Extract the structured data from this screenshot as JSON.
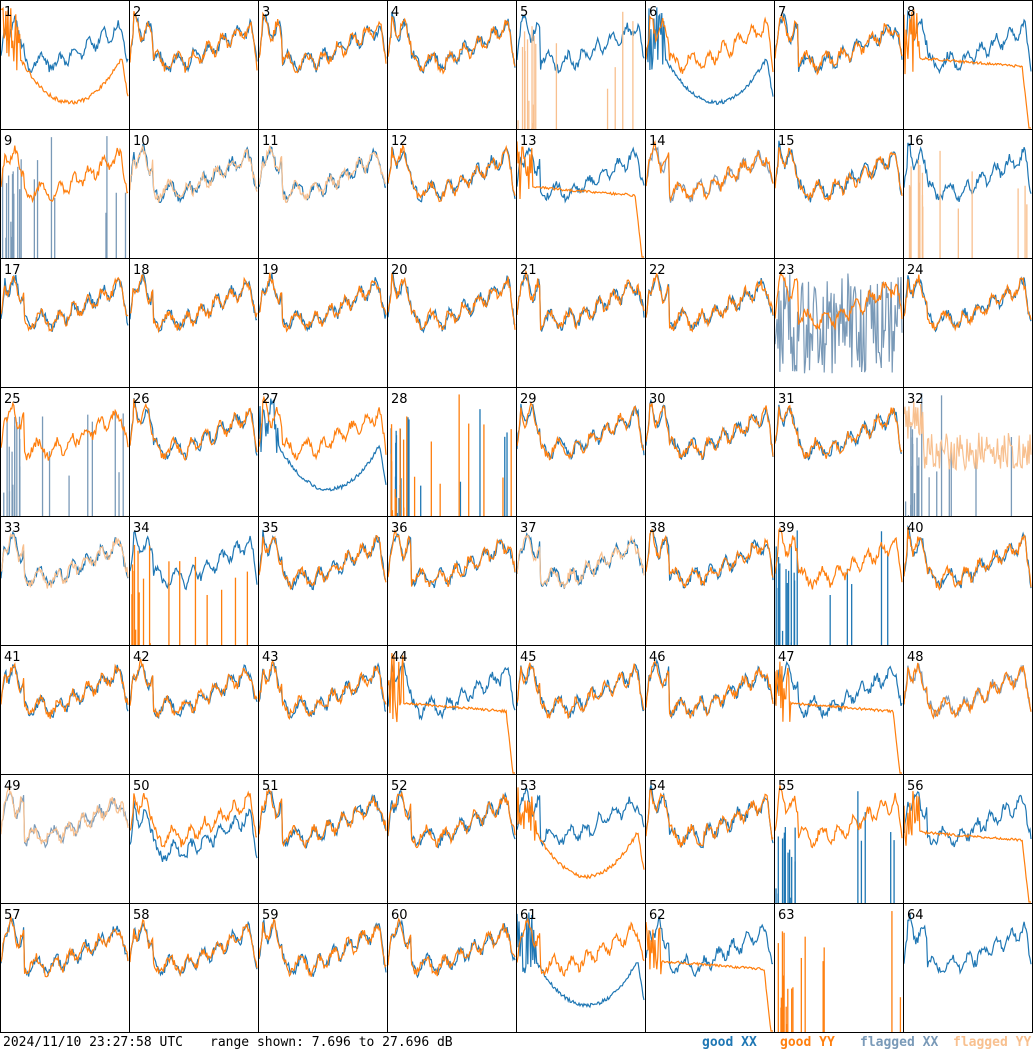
{
  "footer": {
    "timestamp": "2024/11/10 23:27:58 UTC",
    "range_text": "range shown: 7.696 to 27.696 dB"
  },
  "legend": [
    {
      "label": "good XX",
      "color": "#1f77b4"
    },
    {
      "label": "good YY",
      "color": "#ff7f0e"
    },
    {
      "label": "flagged XX",
      "color": "#7a9ab8"
    },
    {
      "label": "flagged YY",
      "color": "#f8c08f"
    }
  ],
  "chart_data": {
    "type": "line",
    "grid": [
      8,
      8
    ],
    "ylim": [
      7.696,
      27.696
    ],
    "y_unit": "dB",
    "panel_labels": [
      "1",
      "2",
      "3",
      "4",
      "5",
      "6",
      "7",
      "8",
      "9",
      "10",
      "11",
      "12",
      "13",
      "14",
      "15",
      "16",
      "17",
      "18",
      "19",
      "20",
      "21",
      "22",
      "23",
      "24",
      "25",
      "26",
      "27",
      "28",
      "29",
      "30",
      "31",
      "32",
      "33",
      "34",
      "35",
      "36",
      "37",
      "38",
      "39",
      "40",
      "41",
      "42",
      "43",
      "44",
      "45",
      "46",
      "47",
      "48",
      "49",
      "50",
      "51",
      "52",
      "53",
      "54",
      "55",
      "56",
      "57",
      "58",
      "59",
      "60",
      "61",
      "62",
      "63",
      "64"
    ],
    "panels": [
      {
        "id": "1",
        "xx": "good",
        "yy": "good",
        "yy_shape": "bowl",
        "seed": 1
      },
      {
        "id": "2",
        "xx": "good",
        "yy": "good",
        "seed": 2
      },
      {
        "id": "3",
        "xx": "good",
        "yy": "good",
        "seed": 3
      },
      {
        "id": "4",
        "xx": "good",
        "yy": "good",
        "seed": 4
      },
      {
        "id": "5",
        "xx": "good",
        "yy": "flagged",
        "yy_shape": "spikes",
        "seed": 5
      },
      {
        "id": "6",
        "xx": "good",
        "yy": "good",
        "xx_shape": "bowl",
        "seed": 6
      },
      {
        "id": "7",
        "xx": "good",
        "yy": "good",
        "seed": 7
      },
      {
        "id": "8",
        "xx": "good",
        "yy": "good",
        "yy_shape": "drop",
        "seed": 8
      },
      {
        "id": "9",
        "xx": "flagged",
        "yy": "good",
        "xx_shape": "spikes",
        "seed": 9
      },
      {
        "id": "10",
        "xx": "good",
        "yy": "flagged",
        "seed": 10
      },
      {
        "id": "11",
        "xx": "good",
        "yy": "flagged",
        "seed": 11
      },
      {
        "id": "12",
        "xx": "good",
        "yy": "good",
        "seed": 12
      },
      {
        "id": "13",
        "xx": "good",
        "yy": "good",
        "yy_shape": "drop",
        "seed": 13
      },
      {
        "id": "14",
        "xx": "flagged",
        "yy": "good",
        "seed": 14
      },
      {
        "id": "15",
        "xx": "good",
        "yy": "good",
        "seed": 15
      },
      {
        "id": "16",
        "xx": "good",
        "yy": "flagged",
        "yy_shape": "spikes",
        "seed": 16
      },
      {
        "id": "17",
        "xx": "good",
        "yy": "good",
        "seed": 17
      },
      {
        "id": "18",
        "xx": "good",
        "yy": "good",
        "seed": 18
      },
      {
        "id": "19",
        "xx": "good",
        "yy": "good",
        "seed": 19
      },
      {
        "id": "20",
        "xx": "good",
        "yy": "good",
        "seed": 20
      },
      {
        "id": "21",
        "xx": "good",
        "yy": "good",
        "seed": 21
      },
      {
        "id": "22",
        "xx": "good",
        "yy": "good",
        "seed": 22
      },
      {
        "id": "23",
        "xx": "flagged",
        "yy": "good",
        "xx_shape": "noise",
        "seed": 23
      },
      {
        "id": "24",
        "xx": "good",
        "yy": "good",
        "seed": 24
      },
      {
        "id": "25",
        "xx": "flagged",
        "yy": "good",
        "xx_shape": "spikes",
        "seed": 25
      },
      {
        "id": "26",
        "xx": "good",
        "yy": "good",
        "seed": 26
      },
      {
        "id": "27",
        "xx": "good",
        "yy": "good",
        "xx_shape": "bowl",
        "seed": 27
      },
      {
        "id": "28",
        "xx": "good",
        "yy": "good",
        "xx_shape": "spikes",
        "yy_shape": "spikes",
        "seed": 28
      },
      {
        "id": "29",
        "xx": "good",
        "yy": "good",
        "seed": 29
      },
      {
        "id": "30",
        "xx": "good",
        "yy": "good",
        "seed": 30
      },
      {
        "id": "31",
        "xx": "good",
        "yy": "good",
        "seed": 31
      },
      {
        "id": "32",
        "xx": "flagged",
        "yy": "flagged",
        "xx_shape": "spikes",
        "yy_shape": "noisy",
        "seed": 32
      },
      {
        "id": "33",
        "xx": "good",
        "yy": "flagged",
        "seed": 33
      },
      {
        "id": "34",
        "xx": "good",
        "yy": "good",
        "yy_shape": "spikes",
        "seed": 34
      },
      {
        "id": "35",
        "xx": "good",
        "yy": "good",
        "seed": 35
      },
      {
        "id": "36",
        "xx": "good",
        "yy": "good",
        "seed": 36
      },
      {
        "id": "37",
        "xx": "good",
        "yy": "flagged",
        "seed": 37
      },
      {
        "id": "38",
        "xx": "good",
        "yy": "good",
        "seed": 38
      },
      {
        "id": "39",
        "xx": "good",
        "yy": "good",
        "xx_shape": "spikes",
        "seed": 39
      },
      {
        "id": "40",
        "xx": "good",
        "yy": "good",
        "seed": 40
      },
      {
        "id": "41",
        "xx": "good",
        "yy": "good",
        "seed": 41
      },
      {
        "id": "42",
        "xx": "good",
        "yy": "good",
        "seed": 42
      },
      {
        "id": "43",
        "xx": "good",
        "yy": "good",
        "seed": 43
      },
      {
        "id": "44",
        "xx": "good",
        "yy": "good",
        "yy_shape": "drop",
        "seed": 44
      },
      {
        "id": "45",
        "xx": "good",
        "yy": "good",
        "seed": 45
      },
      {
        "id": "46",
        "xx": "good",
        "yy": "good",
        "seed": 46
      },
      {
        "id": "47",
        "xx": "good",
        "yy": "good",
        "yy_shape": "drop",
        "seed": 47
      },
      {
        "id": "48",
        "xx": "flagged",
        "yy": "good",
        "seed": 48
      },
      {
        "id": "49",
        "xx": "flagged",
        "yy": "flagged",
        "seed": 49
      },
      {
        "id": "50",
        "xx": "good",
        "yy": "good",
        "xx_shape": "dip",
        "seed": 50
      },
      {
        "id": "51",
        "xx": "good",
        "yy": "good",
        "seed": 51
      },
      {
        "id": "52",
        "xx": "good",
        "yy": "good",
        "seed": 52
      },
      {
        "id": "53",
        "xx": "good",
        "yy": "good",
        "yy_shape": "bowl",
        "seed": 53
      },
      {
        "id": "54",
        "xx": "good",
        "yy": "good",
        "seed": 54
      },
      {
        "id": "55",
        "xx": "good",
        "yy": "good",
        "xx_shape": "spikes",
        "seed": 55
      },
      {
        "id": "56",
        "xx": "good",
        "yy": "good",
        "yy_shape": "drop",
        "seed": 56
      },
      {
        "id": "57",
        "xx": "good",
        "yy": "good",
        "seed": 57
      },
      {
        "id": "58",
        "xx": "good",
        "yy": "good",
        "seed": 58
      },
      {
        "id": "59",
        "xx": "good",
        "yy": "good",
        "seed": 59
      },
      {
        "id": "60",
        "xx": "good",
        "yy": "good",
        "seed": 60
      },
      {
        "id": "61",
        "xx": "good",
        "yy": "good",
        "xx_shape": "bowl",
        "seed": 61
      },
      {
        "id": "62",
        "xx": "good",
        "yy": "good",
        "yy_shape": "drop",
        "seed": 62
      },
      {
        "id": "63",
        "xx": "none",
        "yy": "good",
        "yy_shape": "spikes",
        "seed": 63
      },
      {
        "id": "64",
        "xx": "good",
        "yy": "none",
        "seed": 64
      }
    ]
  }
}
